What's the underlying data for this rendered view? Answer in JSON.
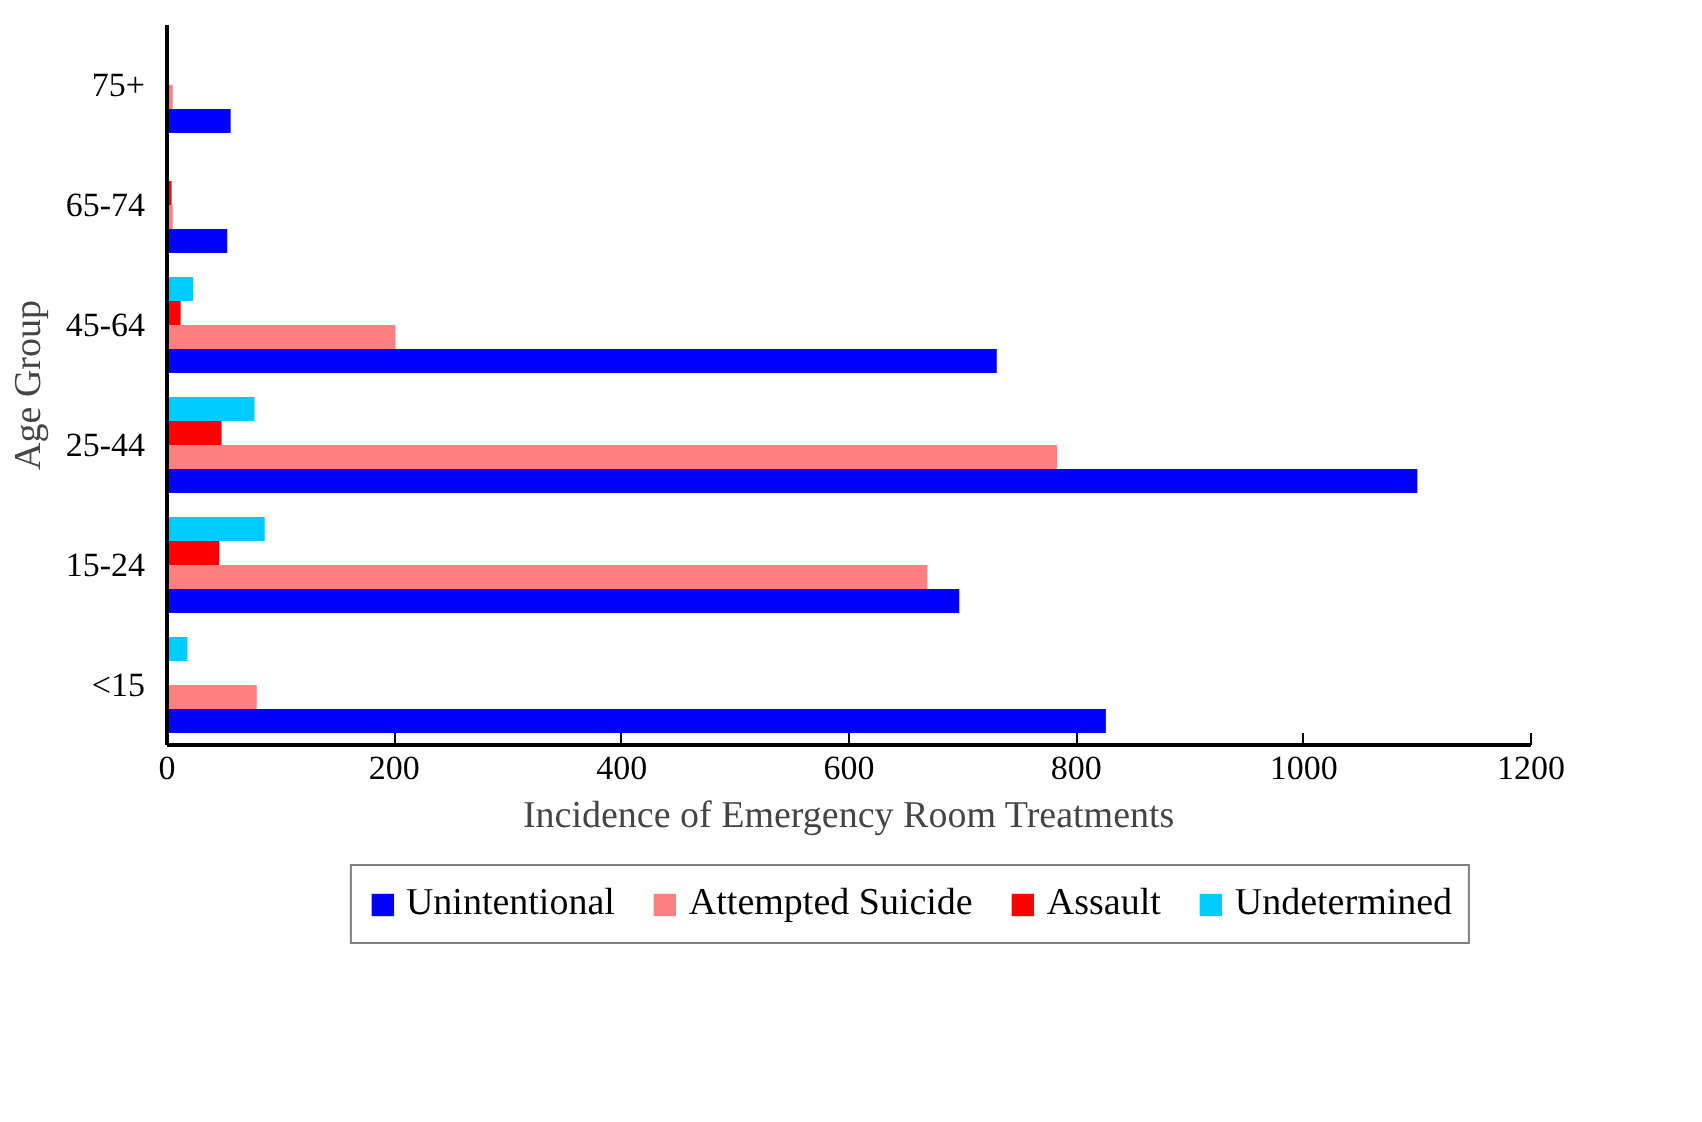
{
  "chart_data": {
    "type": "bar",
    "orientation": "horizontal",
    "xlabel": "Incidence of Emergency Room Treatments",
    "ylabel": "Age Group",
    "categories": [
      "75+",
      "65-74",
      "45-64",
      "25-44",
      "15-24",
      "<15"
    ],
    "series": [
      {
        "name": "Unintentional",
        "color": "#0000ff",
        "values": [
          56,
          53,
          730,
          1100,
          697,
          826
        ]
      },
      {
        "name": "Attempted Suicide",
        "color": "#ff8080",
        "values": [
          5,
          5,
          201,
          783,
          669,
          79
        ]
      },
      {
        "name": "Assault",
        "color": "#ff0000",
        "values": [
          0,
          4,
          12,
          48,
          46,
          null
        ]
      },
      {
        "name": "Undetermined",
        "color": "#00ccff",
        "values": [
          0,
          0,
          23,
          77,
          86,
          18
        ]
      }
    ],
    "xlim": [
      0,
      1200
    ],
    "xticks": [
      0,
      200,
      400,
      600,
      800,
      1000,
      1200
    ],
    "grid": false,
    "legend": "bottom"
  }
}
